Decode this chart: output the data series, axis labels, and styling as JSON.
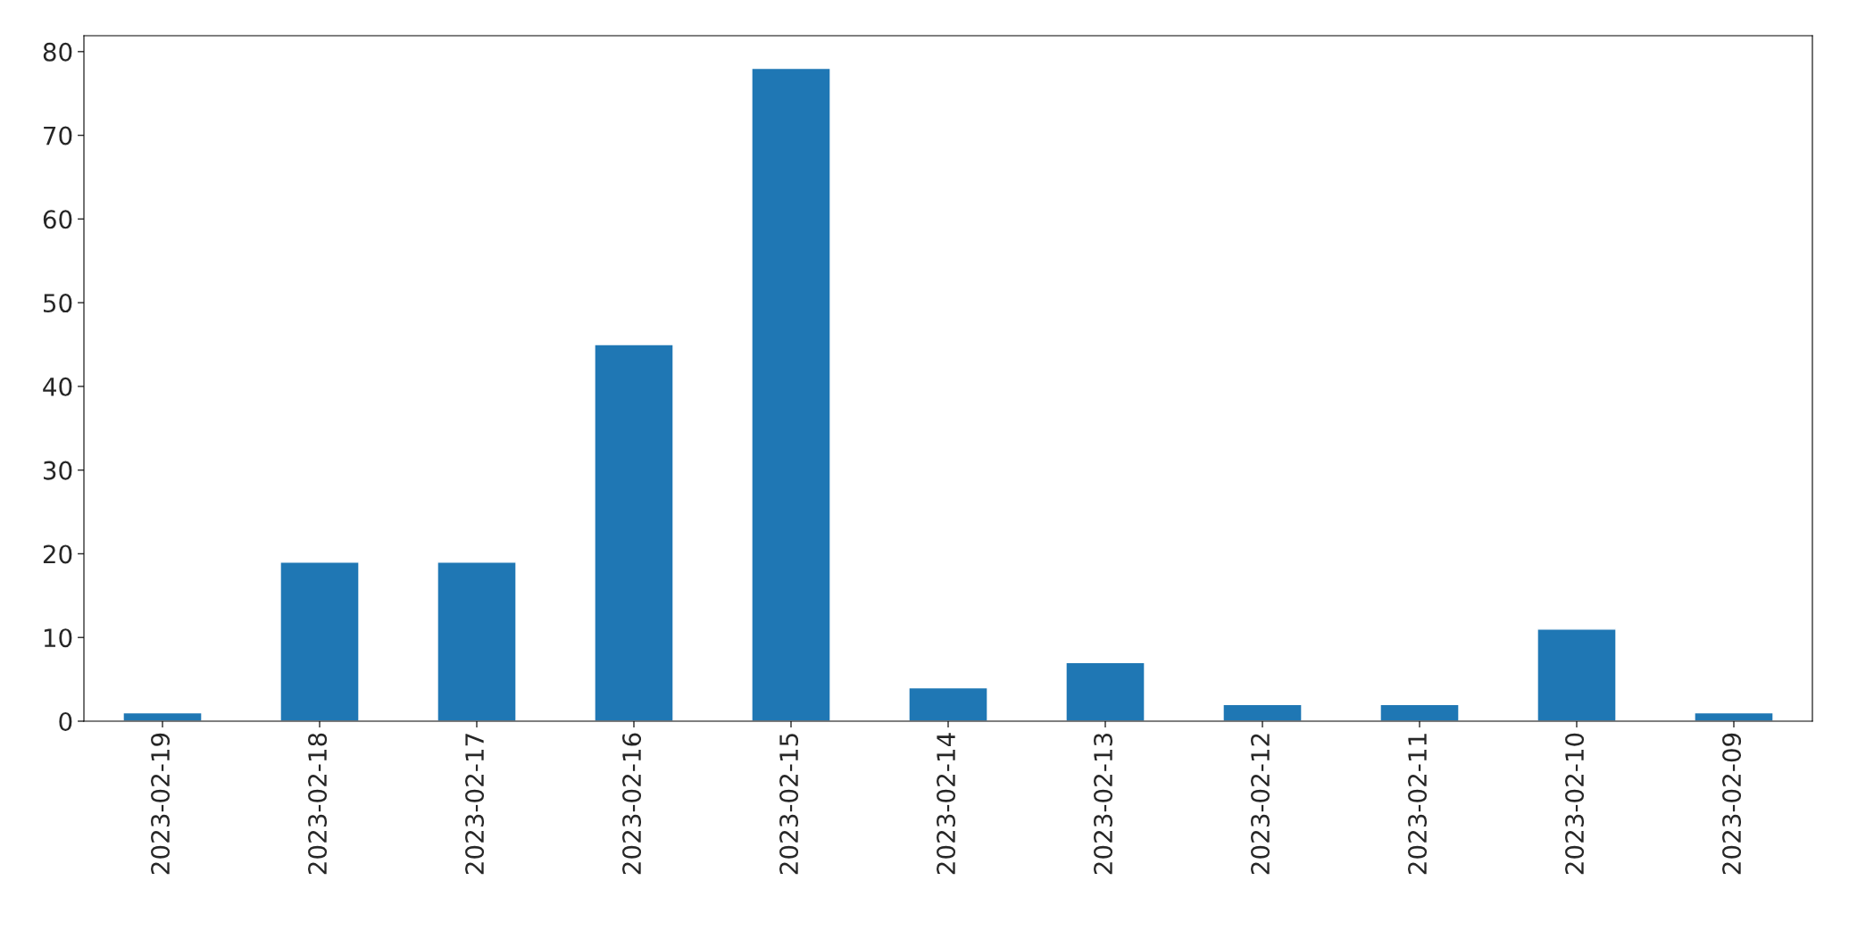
{
  "chart_data": {
    "type": "bar",
    "categories": [
      "2023-02-19",
      "2023-02-18",
      "2023-02-17",
      "2023-02-16",
      "2023-02-15",
      "2023-02-14",
      "2023-02-13",
      "2023-02-12",
      "2023-02-11",
      "2023-02-10",
      "2023-02-09"
    ],
    "values": [
      1,
      19,
      19,
      45,
      78,
      4,
      7,
      2,
      2,
      11,
      1
    ],
    "color": "#1f77b4",
    "ylim": [
      0,
      81.9
    ],
    "yticks": [
      0,
      10,
      20,
      30,
      40,
      50,
      60,
      70,
      80
    ],
    "grid": false
  }
}
